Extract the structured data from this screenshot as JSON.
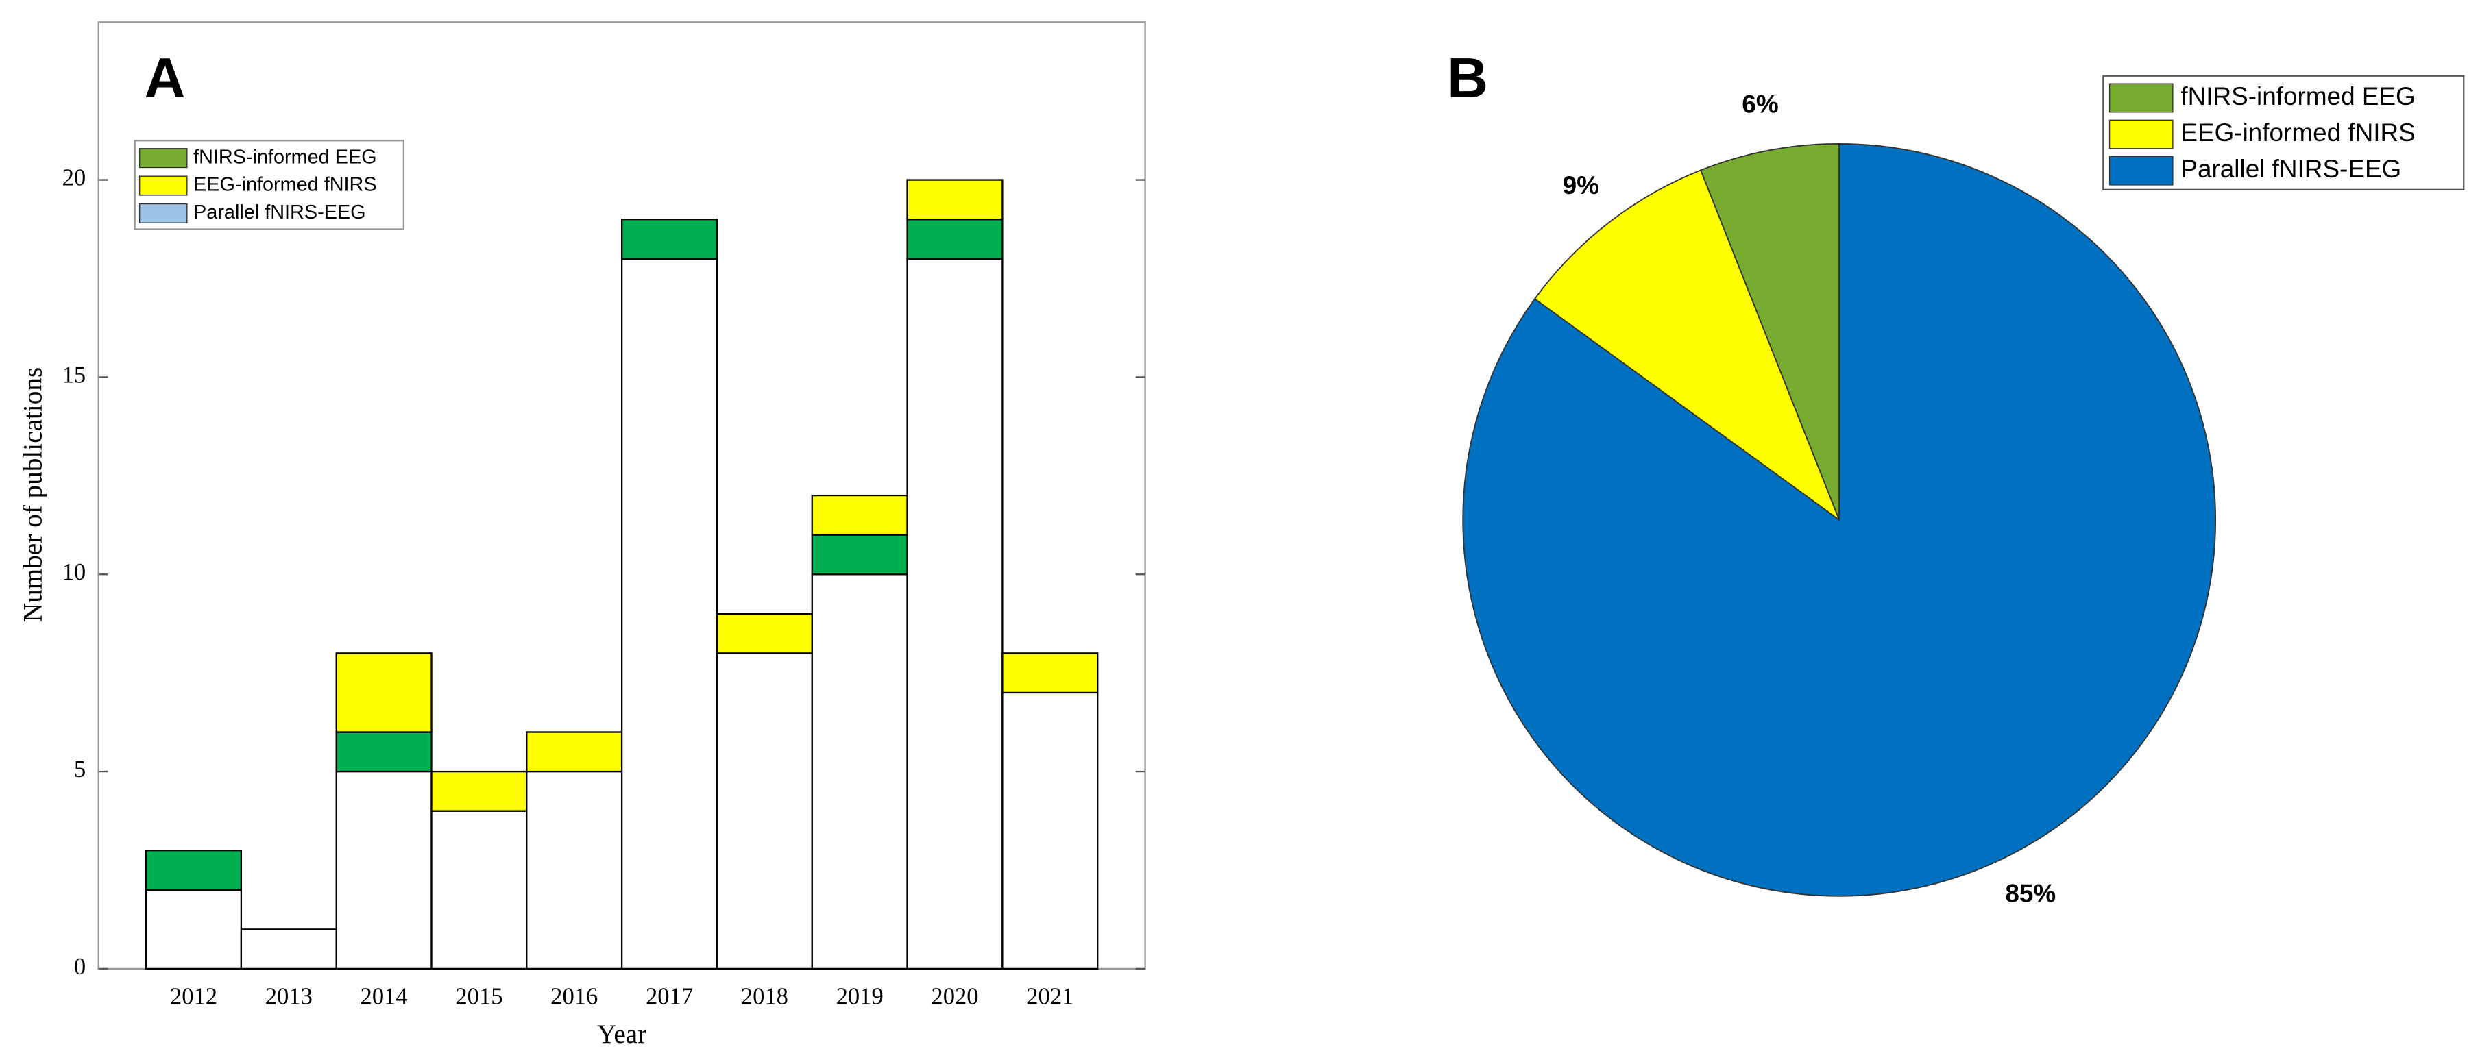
{
  "chart_data": [
    {
      "type": "bar",
      "stacked": true,
      "panel_label": "A",
      "ylabel": "Number of publications",
      "xlabel": "Year",
      "categories": [
        "2012",
        "2013",
        "2014",
        "2015",
        "2016",
        "2017",
        "2018",
        "2019",
        "2020",
        "2021"
      ],
      "series": [
        {
          "name": "Parallel fNIRS-EEG",
          "color": "#ffffff",
          "values": [
            2,
            1,
            5,
            4,
            5,
            18,
            8,
            10,
            18,
            7
          ]
        },
        {
          "name": "fNIRS-informed EEG",
          "color": "#00b050",
          "values": [
            1,
            0,
            1,
            0,
            0,
            1,
            0,
            1,
            1,
            0
          ]
        },
        {
          "name": "EEG-informed fNIRS",
          "color": "#ffff00",
          "values": [
            0,
            0,
            2,
            1,
            1,
            0,
            1,
            1,
            1,
            1
          ]
        }
      ],
      "ylim": [
        0,
        24
      ],
      "yticks": [
        0,
        5,
        10,
        15,
        20
      ],
      "legend": "upper-left"
    },
    {
      "type": "pie",
      "panel_label": "B",
      "categories": [
        "fNIRS-informed EEG",
        "EEG-informed fNIRS",
        "Parallel fNIRS-EEG"
      ],
      "values": [
        6,
        9,
        85
      ],
      "value_labels": [
        "6%",
        "9%",
        "85%"
      ],
      "colors": [
        "#77ac30",
        "#ffff00",
        "#0070c0"
      ],
      "legend": "upper-right"
    }
  ]
}
